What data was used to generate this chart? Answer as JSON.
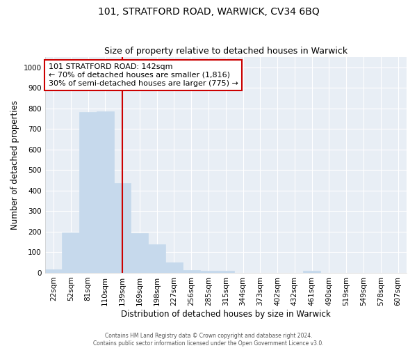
{
  "title1": "101, STRATFORD ROAD, WARWICK, CV34 6BQ",
  "title2": "Size of property relative to detached houses in Warwick",
  "xlabel": "Distribution of detached houses by size in Warwick",
  "ylabel": "Number of detached properties",
  "categories": [
    "22sqm",
    "52sqm",
    "81sqm",
    "110sqm",
    "139sqm",
    "169sqm",
    "198sqm",
    "227sqm",
    "256sqm",
    "285sqm",
    "315sqm",
    "344sqm",
    "373sqm",
    "402sqm",
    "432sqm",
    "461sqm",
    "490sqm",
    "519sqm",
    "549sqm",
    "578sqm",
    "607sqm"
  ],
  "values": [
    18,
    197,
    783,
    787,
    437,
    192,
    140,
    49,
    15,
    10,
    10,
    0,
    0,
    0,
    0,
    10,
    0,
    0,
    0,
    0,
    0
  ],
  "bar_color": "#c6d9ec",
  "bar_edgecolor": "#c6d9ec",
  "vline_x": 4,
  "vline_color": "#cc0000",
  "annotation_text": "101 STRATFORD ROAD: 142sqm\n← 70% of detached houses are smaller (1,816)\n30% of semi-detached houses are larger (775) →",
  "annotation_box_edgecolor": "#cc0000",
  "annotation_box_facecolor": "#ffffff",
  "ylim": [
    0,
    1050
  ],
  "yticks": [
    0,
    100,
    200,
    300,
    400,
    500,
    600,
    700,
    800,
    900,
    1000
  ],
  "background_color": "#e8eef5",
  "footer1": "Contains HM Land Registry data © Crown copyright and database right 2024.",
  "footer2": "Contains public sector information licensed under the Open Government Licence v3.0.",
  "title_fontsize": 10,
  "subtitle_fontsize": 9,
  "axis_fontsize": 8.5,
  "tick_fontsize": 7.5,
  "annot_fontsize": 8
}
